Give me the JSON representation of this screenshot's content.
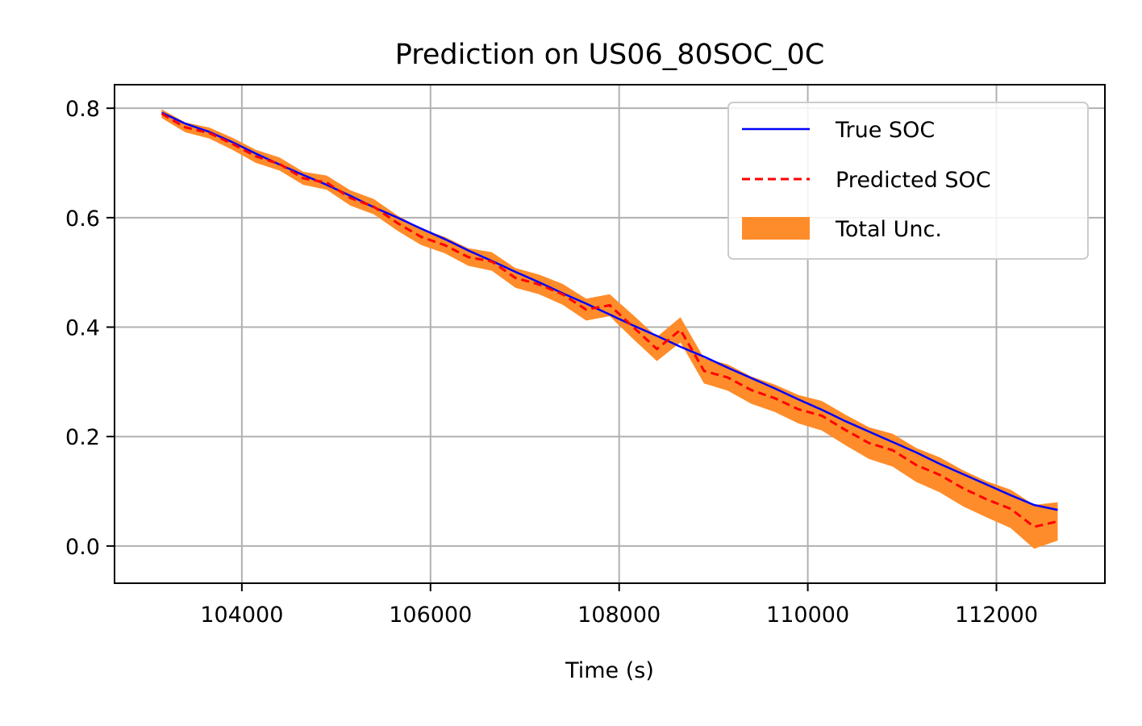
{
  "chart_data": {
    "type": "line",
    "title": "Prediction on US06_80SOC_0C",
    "xlabel": "Time (s)",
    "ylabel": "",
    "xlim": [
      102650,
      113150
    ],
    "ylim": [
      -0.068,
      0.843
    ],
    "xticks": [
      104000,
      106000,
      108000,
      110000,
      112000
    ],
    "xtick_labels": [
      "104000",
      "106000",
      "108000",
      "110000",
      "112000"
    ],
    "yticks": [
      0.0,
      0.2,
      0.4,
      0.6,
      0.8
    ],
    "ytick_labels": [
      "0.0",
      "0.2",
      "0.4",
      "0.6",
      "0.8"
    ],
    "grid": true,
    "legend_position": "top-right",
    "series": [
      {
        "name": "True SOC",
        "style": "solid",
        "color": "#0000ff",
        "x": [
          103150,
          103400,
          103650,
          103900,
          104150,
          104400,
          104650,
          104900,
          105150,
          105400,
          105650,
          105900,
          106150,
          106400,
          106650,
          106900,
          107150,
          107400,
          107650,
          107900,
          108150,
          108400,
          108650,
          108900,
          109150,
          109400,
          109650,
          109900,
          110150,
          110400,
          110650,
          110900,
          111150,
          111400,
          111650,
          111900,
          112150,
          112400,
          112650
        ],
        "y": [
          0.792,
          0.772,
          0.757,
          0.738,
          0.717,
          0.697,
          0.678,
          0.66,
          0.64,
          0.619,
          0.6,
          0.58,
          0.561,
          0.54,
          0.521,
          0.501,
          0.482,
          0.462,
          0.443,
          0.423,
          0.403,
          0.384,
          0.364,
          0.346,
          0.326,
          0.307,
          0.288,
          0.268,
          0.249,
          0.228,
          0.209,
          0.19,
          0.171,
          0.15,
          0.131,
          0.112,
          0.093,
          0.075,
          0.066
        ]
      },
      {
        "name": "Predicted SOC",
        "style": "dashed",
        "color": "#ff0000",
        "x": [
          103150,
          103400,
          103650,
          103900,
          104150,
          104400,
          104650,
          104900,
          105150,
          105400,
          105650,
          105900,
          106150,
          106400,
          106650,
          106900,
          107150,
          107400,
          107650,
          107900,
          108150,
          108400,
          108650,
          108900,
          109150,
          109400,
          109650,
          109900,
          110150,
          110400,
          110650,
          110900,
          111150,
          111400,
          111650,
          111900,
          112150,
          112400,
          112650
        ],
        "y": [
          0.79,
          0.765,
          0.755,
          0.735,
          0.712,
          0.698,
          0.672,
          0.664,
          0.636,
          0.62,
          0.59,
          0.565,
          0.55,
          0.528,
          0.52,
          0.49,
          0.478,
          0.46,
          0.432,
          0.44,
          0.4,
          0.36,
          0.395,
          0.32,
          0.308,
          0.285,
          0.27,
          0.25,
          0.238,
          0.212,
          0.188,
          0.175,
          0.148,
          0.13,
          0.105,
          0.085,
          0.068,
          0.035,
          0.045
        ]
      }
    ],
    "band": {
      "name": "Total Unc.",
      "color": "#ff8c2a",
      "x": [
        103150,
        103400,
        103650,
        103900,
        104150,
        104400,
        104650,
        104900,
        105150,
        105400,
        105650,
        105900,
        106150,
        106400,
        106650,
        106900,
        107150,
        107400,
        107650,
        107900,
        108150,
        108400,
        108650,
        108900,
        109150,
        109400,
        109650,
        109900,
        110150,
        110400,
        110650,
        110900,
        111150,
        111400,
        111650,
        111900,
        112150,
        112400,
        112650
      ],
      "lower": [
        0.782,
        0.756,
        0.745,
        0.724,
        0.7,
        0.686,
        0.66,
        0.651,
        0.622,
        0.606,
        0.576,
        0.55,
        0.535,
        0.512,
        0.503,
        0.472,
        0.46,
        0.441,
        0.412,
        0.42,
        0.378,
        0.338,
        0.372,
        0.297,
        0.284,
        0.26,
        0.245,
        0.224,
        0.211,
        0.184,
        0.159,
        0.145,
        0.117,
        0.098,
        0.072,
        0.052,
        0.033,
        -0.005,
        0.01
      ],
      "upper": [
        0.798,
        0.774,
        0.765,
        0.746,
        0.724,
        0.71,
        0.684,
        0.677,
        0.65,
        0.634,
        0.604,
        0.58,
        0.565,
        0.544,
        0.537,
        0.508,
        0.496,
        0.479,
        0.452,
        0.46,
        0.422,
        0.382,
        0.418,
        0.343,
        0.332,
        0.31,
        0.295,
        0.276,
        0.265,
        0.24,
        0.217,
        0.205,
        0.179,
        0.162,
        0.138,
        0.118,
        0.103,
        0.075,
        0.08
      ]
    },
    "legend": [
      {
        "label": "True SOC",
        "kind": "line-solid",
        "color": "#0000ff"
      },
      {
        "label": "Predicted SOC",
        "kind": "line-dashed",
        "color": "#ff0000"
      },
      {
        "label": "Total Unc.",
        "kind": "patch",
        "color": "#ff8c2a"
      }
    ]
  }
}
